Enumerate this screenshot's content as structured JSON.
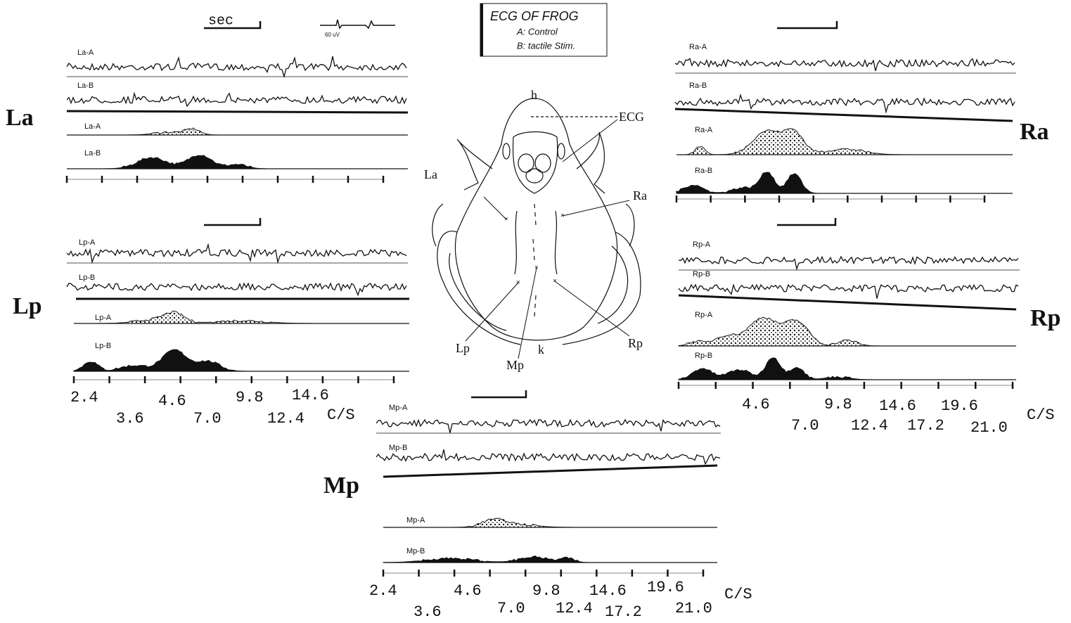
{
  "header": {
    "scale_label": "sec",
    "amplitude_label": "60 uV"
  },
  "legend": {
    "title": "ECG OF FROG",
    "items": [
      "A: Control",
      "B: tactile Stim."
    ]
  },
  "frog": {
    "labels": [
      "h",
      "ECG",
      "La",
      "Ra",
      "Lp",
      "Mp",
      "Rp",
      "k"
    ]
  },
  "panels": [
    {
      "name": "La",
      "traces": [
        "La-A",
        "La-B"
      ],
      "spectra": [
        "La-A",
        "La-B"
      ],
      "freq_labels": []
    },
    {
      "name": "Lp",
      "traces": [
        "Lp-A",
        "Lp-B"
      ],
      "spectra": [
        "Lp-A",
        "Lp-B"
      ],
      "freq_labels": [
        "2.4",
        "3.6",
        "4.6",
        "7.0",
        "9.8",
        "12.4",
        "14.6"
      ],
      "unit": "C/S"
    },
    {
      "name": "Ra",
      "traces": [
        "Ra-A",
        "Ra-B"
      ],
      "spectra": [
        "Ra-A",
        "Ra-B"
      ],
      "freq_labels": []
    },
    {
      "name": "Rp",
      "traces": [
        "Rp-A",
        "Rp-B"
      ],
      "spectra": [
        "Rp-A",
        "Rp-B"
      ],
      "freq_labels": [
        "4.6",
        "7.0",
        "9.8",
        "12.4",
        "14.6",
        "17.2",
        "19.6",
        "21.0"
      ],
      "unit": "C/S"
    },
    {
      "name": "Mp",
      "traces": [
        "Mp-A",
        "Mp-B"
      ],
      "spectra": [
        "Mp-A",
        "Mp-B"
      ],
      "freq_labels": [
        "2.4",
        "3.6",
        "4.6",
        "7.0",
        "9.8",
        "12.4",
        "14.6",
        "17.2",
        "19.6",
        "21.0"
      ],
      "unit": "C/S"
    }
  ]
}
